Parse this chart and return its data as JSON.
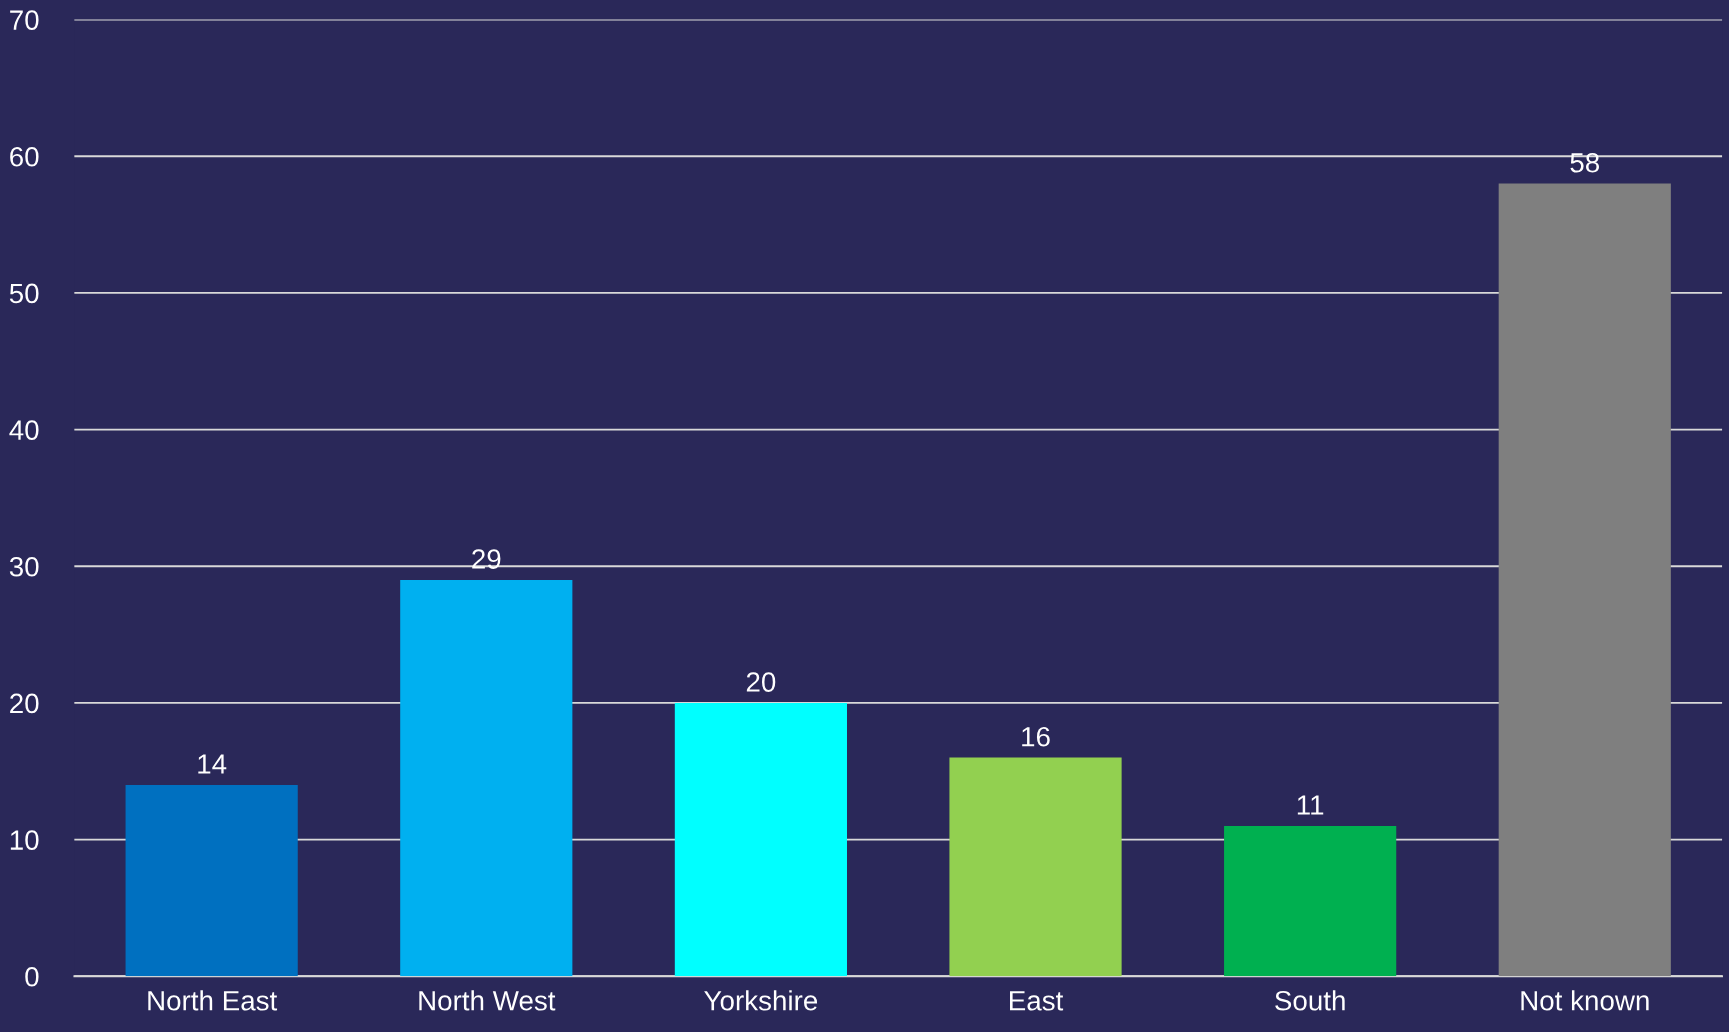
{
  "chart_data": {
    "type": "bar",
    "categories": [
      "North East",
      "North West",
      "Yorkshire",
      "East",
      "South",
      "Not known"
    ],
    "values": [
      14,
      29,
      20,
      16,
      11,
      58
    ],
    "colors": [
      "#0070c0",
      "#00b0f0",
      "#00ffff",
      "#92d050",
      "#00b050",
      "#7f7f7f"
    ],
    "ylim": [
      0,
      70
    ],
    "yticks": [
      0,
      10,
      20,
      30,
      40,
      50,
      60,
      70
    ],
    "grid": "y",
    "data_labels": true,
    "legend": false
  }
}
